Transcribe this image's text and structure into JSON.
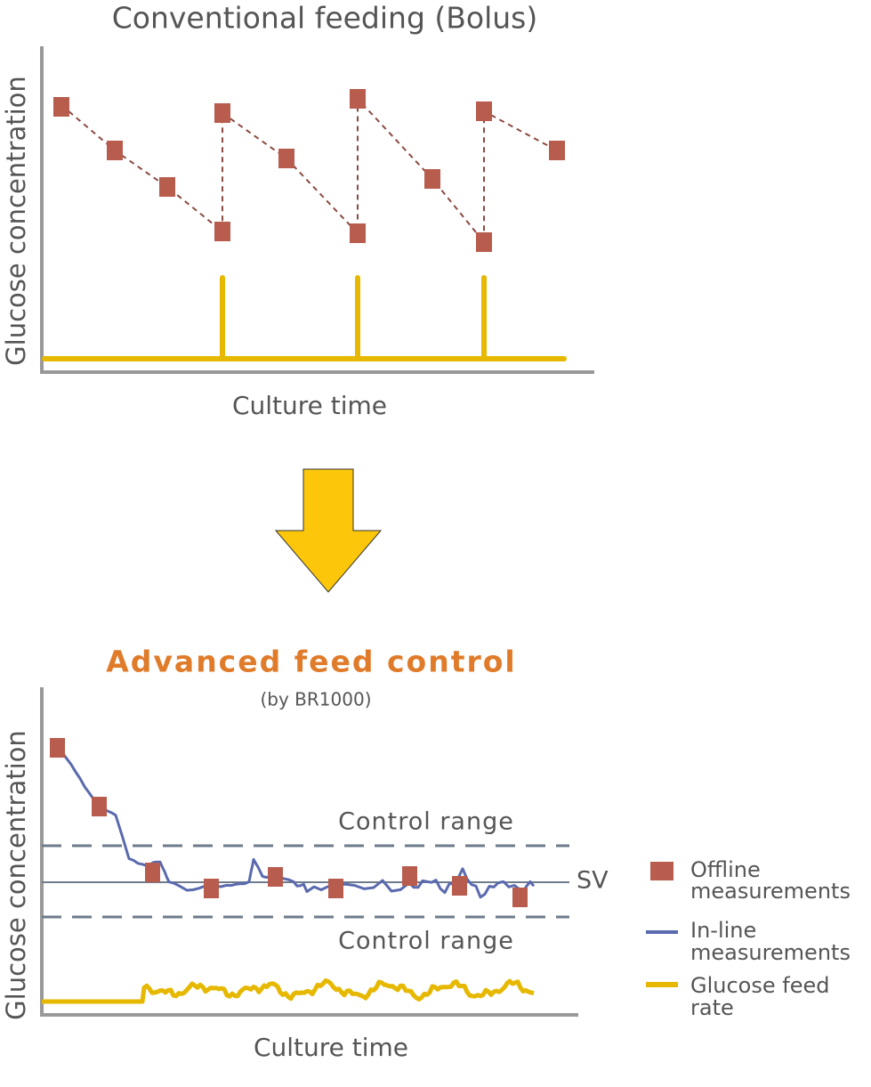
{
  "top": {
    "title": "Conventional feeding (Bolus)",
    "y_label": "Glucose concentration",
    "x_label": "Culture time"
  },
  "bottom": {
    "title": "Advanced feed control",
    "subtitle": "(by BR1000)",
    "y_label": "Glucose concentration",
    "x_label": "Culture time",
    "upper_band": "Control range",
    "lower_band": "Control range",
    "setpoint": "SV"
  },
  "legend": [
    {
      "lines": [
        "Offline",
        "measurements"
      ]
    },
    {
      "lines": [
        "In-line",
        "measurements"
      ]
    },
    {
      "lines": [
        "Glucose feed",
        "rate"
      ]
    }
  ]
}
